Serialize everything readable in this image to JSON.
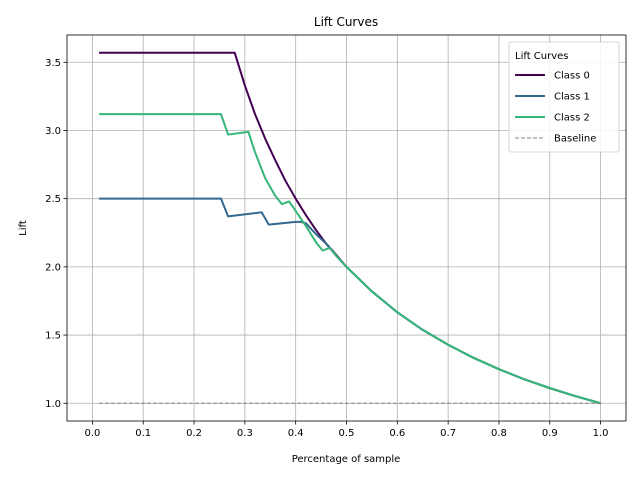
{
  "chart_data": {
    "type": "line",
    "title": "Lift Curves",
    "xlabel": "Percentage of sample",
    "ylabel": "Lift",
    "xlim": [
      -0.05,
      1.05
    ],
    "ylim": [
      0.87,
      3.7
    ],
    "xticks": [
      0.0,
      0.1,
      0.2,
      0.3,
      0.4,
      0.5,
      0.6,
      0.7,
      0.8,
      0.9,
      1.0
    ],
    "xtick_labels": [
      "0.0",
      "0.1",
      "0.2",
      "0.3",
      "0.4",
      "0.5",
      "0.6",
      "0.7",
      "0.8",
      "0.9",
      "1.0"
    ],
    "yticks": [
      1.0,
      1.5,
      2.0,
      2.5,
      3.0,
      3.5
    ],
    "ytick_labels": [
      "1.0",
      "1.5",
      "2.0",
      "2.5",
      "3.0",
      "3.5"
    ],
    "grid": true,
    "legend": {
      "title": "Lift Curves",
      "position": "top-right"
    },
    "series": [
      {
        "name": "Class 0",
        "color": "#440154",
        "style": "solid",
        "points": [
          [
            0.013,
            3.57
          ],
          [
            0.28,
            3.57
          ],
          [
            0.29,
            3.45
          ],
          [
            0.3,
            3.33
          ],
          [
            0.32,
            3.12
          ],
          [
            0.34,
            2.94
          ],
          [
            0.36,
            2.78
          ],
          [
            0.38,
            2.63
          ],
          [
            0.4,
            2.5
          ],
          [
            0.42,
            2.38
          ],
          [
            0.44,
            2.27
          ],
          [
            0.46,
            2.17
          ],
          [
            0.47,
            2.13
          ],
          [
            0.5,
            2.0
          ],
          [
            0.55,
            1.82
          ],
          [
            0.6,
            1.667
          ],
          [
            0.65,
            1.538
          ],
          [
            0.7,
            1.429
          ],
          [
            0.75,
            1.333
          ],
          [
            0.8,
            1.25
          ],
          [
            0.85,
            1.176
          ],
          [
            0.9,
            1.111
          ],
          [
            0.95,
            1.053
          ],
          [
            1.0,
            1.0
          ]
        ]
      },
      {
        "name": "Class 1",
        "color": "#31688e",
        "style": "solid",
        "points": [
          [
            0.013,
            2.5
          ],
          [
            0.253,
            2.5
          ],
          [
            0.267,
            2.37
          ],
          [
            0.333,
            2.4
          ],
          [
            0.347,
            2.31
          ],
          [
            0.4,
            2.33
          ],
          [
            0.41,
            2.33
          ],
          [
            0.42,
            2.32
          ],
          [
            0.44,
            2.24
          ],
          [
            0.46,
            2.17
          ],
          [
            0.48,
            2.08
          ],
          [
            0.5,
            2.0
          ],
          [
            0.55,
            1.82
          ],
          [
            0.6,
            1.667
          ],
          [
            0.65,
            1.538
          ],
          [
            0.7,
            1.429
          ],
          [
            0.75,
            1.333
          ],
          [
            0.8,
            1.25
          ],
          [
            0.85,
            1.176
          ],
          [
            0.9,
            1.111
          ],
          [
            0.95,
            1.053
          ],
          [
            1.0,
            1.0
          ]
        ]
      },
      {
        "name": "Class 2",
        "color": "#35b779",
        "style": "solid",
        "points": [
          [
            0.013,
            3.12
          ],
          [
            0.253,
            3.12
          ],
          [
            0.267,
            2.97
          ],
          [
            0.307,
            2.99
          ],
          [
            0.32,
            2.84
          ],
          [
            0.34,
            2.65
          ],
          [
            0.36,
            2.52
          ],
          [
            0.373,
            2.46
          ],
          [
            0.387,
            2.48
          ],
          [
            0.4,
            2.41
          ],
          [
            0.42,
            2.3
          ],
          [
            0.44,
            2.18
          ],
          [
            0.453,
            2.12
          ],
          [
            0.467,
            2.14
          ],
          [
            0.48,
            2.08
          ],
          [
            0.5,
            2.0
          ],
          [
            0.55,
            1.82
          ],
          [
            0.6,
            1.667
          ],
          [
            0.65,
            1.538
          ],
          [
            0.7,
            1.429
          ],
          [
            0.75,
            1.333
          ],
          [
            0.8,
            1.25
          ],
          [
            0.85,
            1.176
          ],
          [
            0.9,
            1.111
          ],
          [
            0.95,
            1.053
          ],
          [
            1.0,
            1.0
          ]
        ]
      },
      {
        "name": "Baseline",
        "color": "#808080",
        "style": "dashed",
        "points": [
          [
            0.013,
            1.0
          ],
          [
            1.0,
            1.0
          ]
        ]
      }
    ]
  }
}
